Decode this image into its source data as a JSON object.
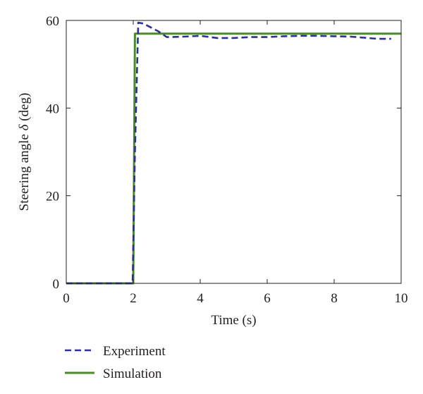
{
  "chart_data": {
    "type": "line",
    "xlabel": "Time (s)",
    "ylabel_parts": [
      "Steering angle ",
      "δ",
      " (deg)"
    ],
    "xlim": [
      0,
      10
    ],
    "ylim": [
      0,
      60
    ],
    "xticks": [
      0,
      2,
      4,
      6,
      8,
      10
    ],
    "yticks": [
      0,
      20,
      40,
      60
    ],
    "grid": false,
    "legend_placement": "bottom-left",
    "series": [
      {
        "name": "Experiment",
        "style": "dashed",
        "color": "#2e3192",
        "x": [
          0,
          1.98,
          2.05,
          2.15,
          2.3,
          2.5,
          2.75,
          3.0,
          3.5,
          4.0,
          4.5,
          5.0,
          5.5,
          6.0,
          6.5,
          7.0,
          7.5,
          8.0,
          8.5,
          9.0,
          9.3,
          9.7
        ],
        "y": [
          0,
          0,
          30,
          59.5,
          59.3,
          58.5,
          57.5,
          56.2,
          56.3,
          56.5,
          56.0,
          56.0,
          56.2,
          56.2,
          56.4,
          56.5,
          56.5,
          56.4,
          56.3,
          56.0,
          55.8,
          55.8
        ]
      },
      {
        "name": "Simulation",
        "style": "solid",
        "color": "#4a8a2a",
        "x": [
          0,
          2.0,
          2.05,
          10
        ],
        "y": [
          0,
          0,
          57,
          57
        ]
      }
    ]
  }
}
